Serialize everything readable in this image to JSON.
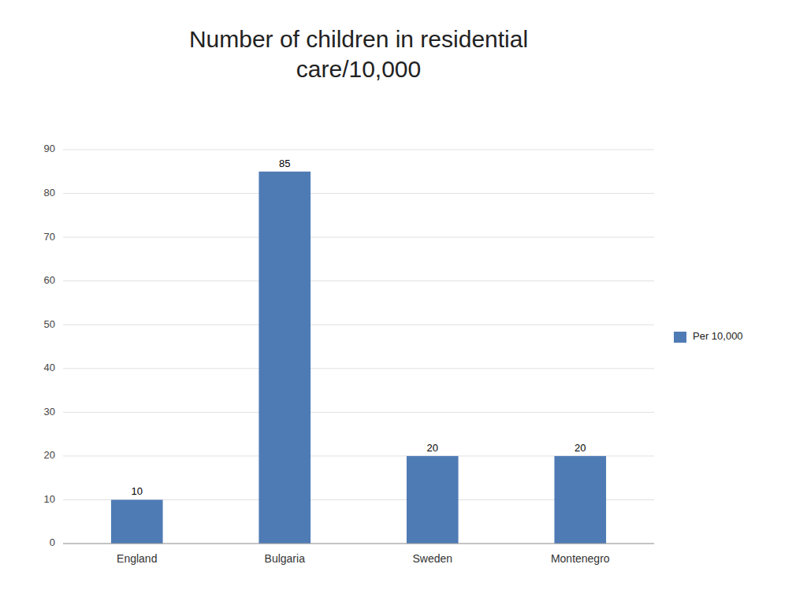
{
  "chart_data": {
    "type": "bar",
    "title": "Number of children in residential\ncare/10,000",
    "categories": [
      "England",
      "Bulgaria",
      "Sweden",
      "Montenegro"
    ],
    "series": [
      {
        "name": "Per 10,000",
        "color": "#4F7BB5",
        "values": [
          10,
          85,
          20,
          20
        ]
      }
    ],
    "ylim": [
      0,
      90
    ],
    "yticks": [
      0,
      10,
      20,
      30,
      40,
      50,
      60,
      70,
      80,
      90
    ],
    "grid": true,
    "data_labels": true,
    "legend": "right"
  }
}
